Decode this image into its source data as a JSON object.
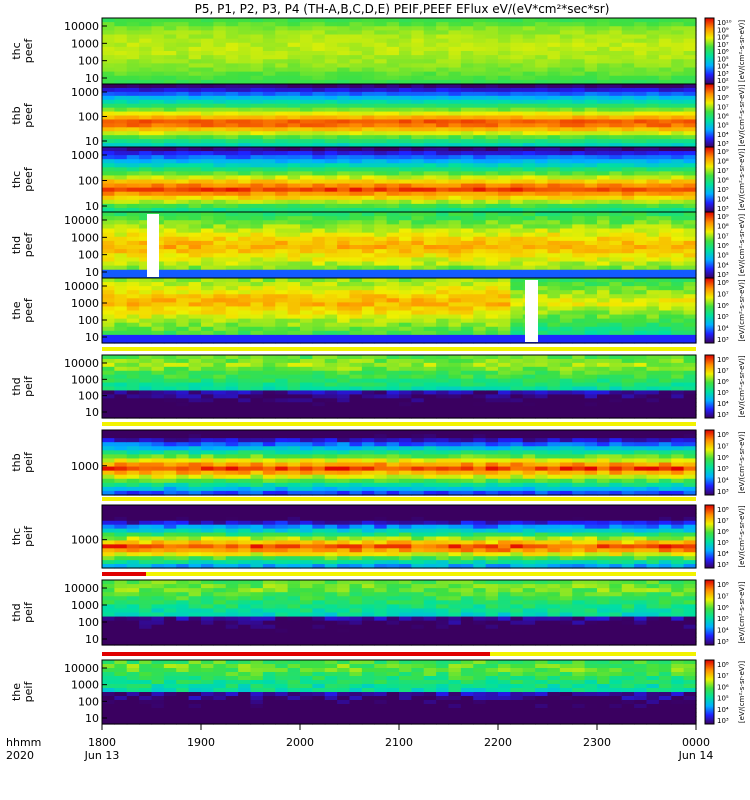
{
  "title": "P5, P1, P2, P3, P4 (TH-A,B,C,D,E) PEIF,PEEF EFlux eV/(eV*cm²*sec*sr)",
  "chart_data": {
    "type": "heatmap",
    "x": {
      "ticks": [
        "1800",
        "1900",
        "2000",
        "2100",
        "2200",
        "2300",
        "0000"
      ],
      "start_date": "Jun 13",
      "end_date": "Jun 14",
      "label_lines": [
        "hhmm",
        "2020"
      ]
    },
    "colorbar_unit": "[eV/(cm²-s-sr-eV)]",
    "colormap": [
      "#3a0060",
      "#2020ff",
      "#00b0ff",
      "#00e0a0",
      "#40e040",
      "#f0f000",
      "#ff9000",
      "#e00000"
    ],
    "panels": [
      {
        "ylabel": [
          "thc",
          "peef"
        ],
        "yticks": [
          "10000",
          "1000",
          "100",
          "10"
        ],
        "yscale": "log",
        "cbticks": [
          "10¹⁰",
          "10⁹",
          "10⁸",
          "10⁷",
          "10⁶",
          "10⁵",
          "10⁴",
          "10³",
          "10²"
        ]
      },
      {
        "ylabel": [
          "thb",
          "peef"
        ],
        "yticks": [
          "1000",
          "100",
          "10"
        ],
        "yscale": "log",
        "cbticks": [
          "10⁹",
          "10⁸",
          "10⁷",
          "10⁶",
          "10⁵",
          "10⁴",
          "10³"
        ]
      },
      {
        "ylabel": [
          "thc",
          "peef"
        ],
        "yticks": [
          "1000",
          "100",
          "10"
        ],
        "yscale": "log",
        "cbticks": [
          "10⁹",
          "10⁸",
          "10⁷",
          "10⁶",
          "10⁵",
          "10⁴",
          "10³"
        ]
      },
      {
        "ylabel": [
          "thd",
          "peef"
        ],
        "yticks": [
          "10000",
          "1000",
          "100",
          "10"
        ],
        "yscale": "log",
        "cbticks": [
          "10⁹",
          "10⁸",
          "10⁷",
          "10⁶",
          "10⁵",
          "10⁴",
          "10³"
        ]
      },
      {
        "ylabel": [
          "the",
          "peef"
        ],
        "yticks": [
          "10000",
          "1000",
          "100",
          "10"
        ],
        "yscale": "log",
        "cbticks": [
          "10⁸",
          "10⁷",
          "10⁶",
          "10⁵",
          "10⁴",
          "10³"
        ]
      },
      {
        "ylabel": [
          "thd",
          "peif"
        ],
        "yticks": [
          "10000",
          "1000",
          "100",
          "10"
        ],
        "yscale": "log",
        "cbticks": [
          "10⁸",
          "10⁷",
          "10⁶",
          "10⁵",
          "10⁴",
          "10³"
        ]
      },
      {
        "ylabel": [
          "thb",
          "peif"
        ],
        "yticks": [
          "1000"
        ],
        "yscale": "log",
        "cbticks": [
          "10⁸",
          "10⁷",
          "10⁶",
          "10⁵",
          "10⁴",
          "10³"
        ]
      },
      {
        "ylabel": [
          "thc",
          "peif"
        ],
        "yticks": [
          "1000"
        ],
        "yscale": "log",
        "cbticks": [
          "10⁸",
          "10⁷",
          "10⁶",
          "10⁵",
          "10⁴",
          "10³"
        ]
      },
      {
        "ylabel": [
          "thd",
          "peif"
        ],
        "yticks": [
          "10000",
          "1000",
          "100",
          "10"
        ],
        "yscale": "log",
        "cbticks": [
          "10⁸",
          "10⁷",
          "10⁶",
          "10⁵",
          "10⁴",
          "10³"
        ]
      },
      {
        "ylabel": [
          "the",
          "peif"
        ],
        "yticks": [
          "10000",
          "1000",
          "100",
          "10"
        ],
        "yscale": "log",
        "cbticks": [
          "10⁸",
          "10⁷",
          "10⁶",
          "10⁵",
          "10⁴",
          "10³"
        ]
      }
    ]
  }
}
